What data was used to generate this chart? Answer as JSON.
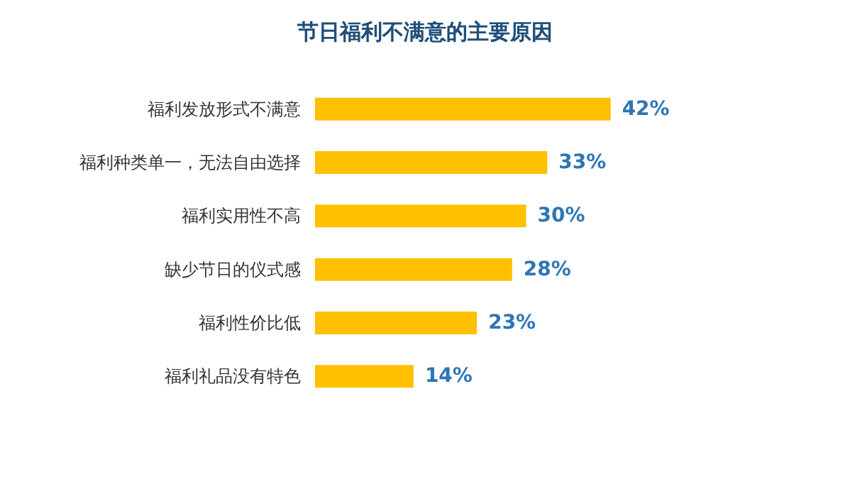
{
  "chart_data": {
    "type": "bar",
    "orientation": "horizontal",
    "title": "节日福利不满意的主要原因",
    "categories": [
      "福利发放形式不满意",
      "福利种类单一，无法自由选择",
      "福利实用性不高",
      "缺少节日的仪式感",
      "福利性价比低",
      "福利礼品没有特色"
    ],
    "values": [
      42,
      33,
      30,
      28,
      23,
      14
    ],
    "value_labels": [
      "42%",
      "33%",
      "30%",
      "28%",
      "23%",
      "14%"
    ],
    "color": "#ffc000"
  }
}
